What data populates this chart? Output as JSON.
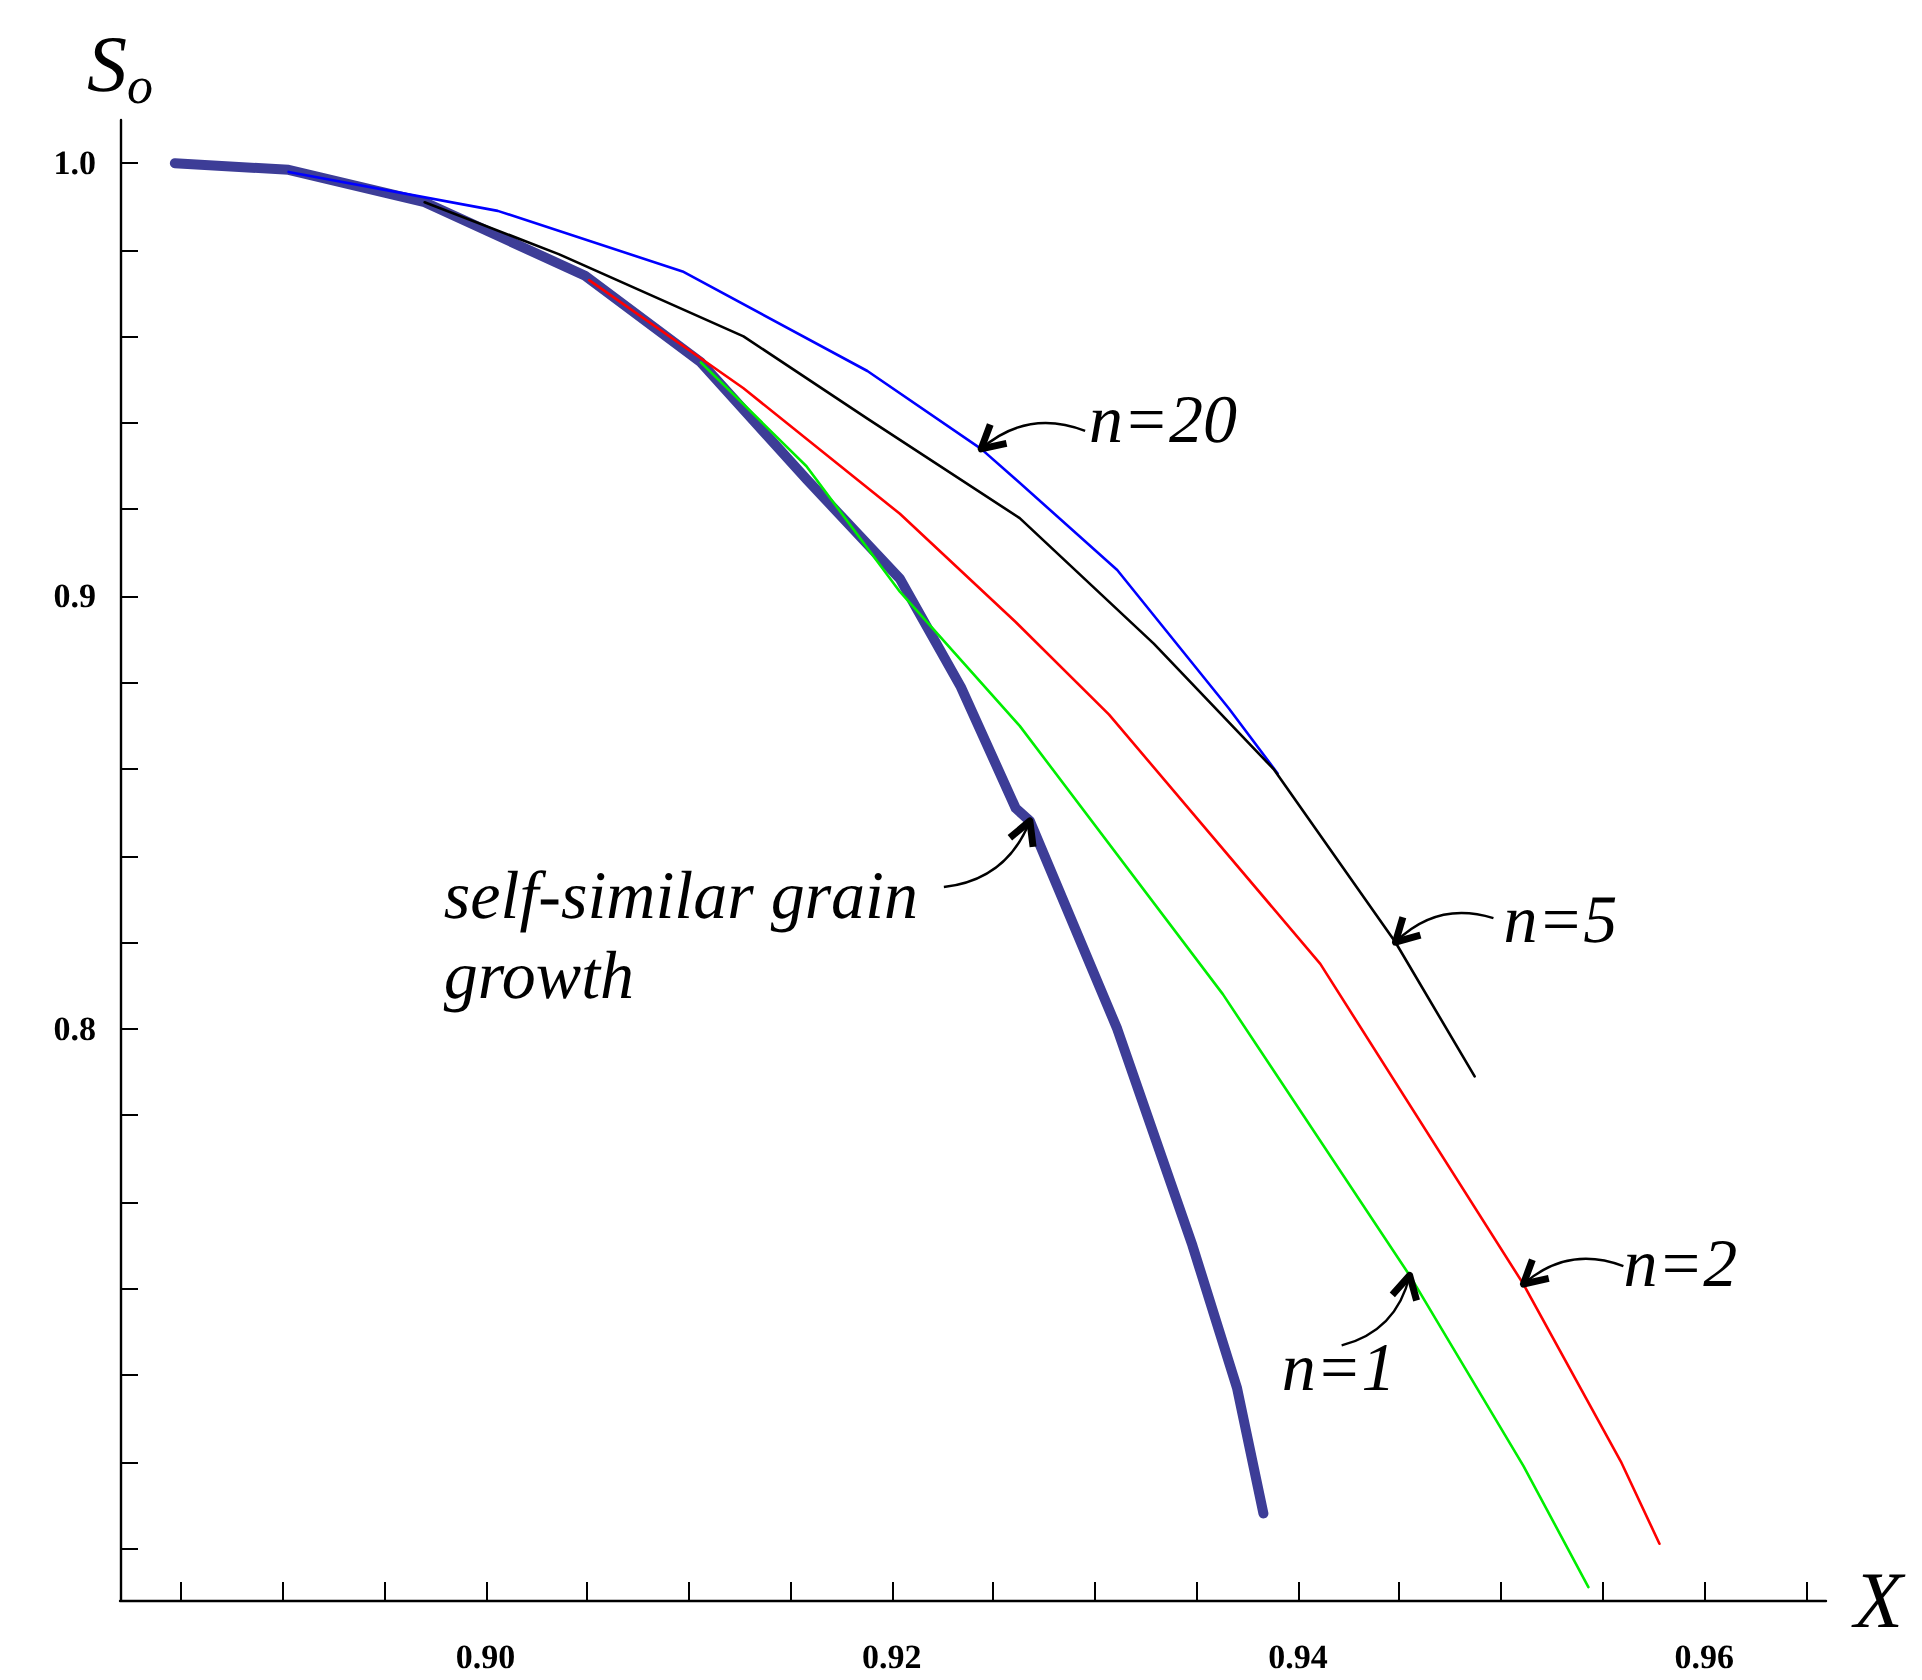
{
  "chart_data": {
    "type": "line",
    "xlabel": "X",
    "ylabel": "S$_{o}$",
    "xlim": [
      0.882,
      0.966
    ],
    "ylim": [
      0.668,
      1.01
    ],
    "xticks": [
      {
        "value": 0.885,
        "label": null
      },
      {
        "value": 0.89,
        "label": null
      },
      {
        "value": 0.895,
        "label": null
      },
      {
        "value": 0.9,
        "label": "0.90"
      },
      {
        "value": 0.905,
        "label": null
      },
      {
        "value": 0.91,
        "label": null
      },
      {
        "value": 0.915,
        "label": null
      },
      {
        "value": 0.92,
        "label": "0.92"
      },
      {
        "value": 0.925,
        "label": null
      },
      {
        "value": 0.93,
        "label": null
      },
      {
        "value": 0.935,
        "label": null
      },
      {
        "value": 0.94,
        "label": "0.94"
      },
      {
        "value": 0.945,
        "label": null
      },
      {
        "value": 0.95,
        "label": null
      },
      {
        "value": 0.955,
        "label": null
      },
      {
        "value": 0.96,
        "label": "0.96"
      },
      {
        "value": 0.965,
        "label": null
      }
    ],
    "yticks": [
      {
        "value": 0.68,
        "label": null
      },
      {
        "value": 0.7,
        "label": null
      },
      {
        "value": 0.72,
        "label": null
      },
      {
        "value": 0.74,
        "label": null
      },
      {
        "value": 0.76,
        "label": null
      },
      {
        "value": 0.78,
        "label": null
      },
      0.8,
      {
        "value": 0.82,
        "label": null
      },
      {
        "value": 0.84,
        "label": null
      },
      {
        "value": 0.86,
        "label": null
      },
      {
        "value": 0.88,
        "label": null
      },
      0.9,
      {
        "value": 0.92,
        "label": null
      },
      {
        "value": 0.94,
        "label": null
      },
      {
        "value": 0.96,
        "label": null
      },
      {
        "value": 0.98,
        "label": null
      },
      {
        "value": 1,
        "label": "1.0"
      }
    ],
    "grid": false,
    "marker": "none",
    "line_style": "solid",
    "series": [
      {
        "color": "#3d3d97",
        "x": [
          0.8847,
          0.8903,
          0.897,
          0.9049,
          0.9106,
          0.9158,
          0.9204,
          0.9234,
          0.9261,
          0.9268,
          0.9311,
          0.9348,
          0.937,
          0.9383
        ],
        "values": [
          1.0,
          0.9985,
          0.991,
          0.974,
          0.954,
          0.927,
          0.904,
          0.879,
          0.851,
          0.848,
          0.8,
          0.75,
          0.717,
          0.688
        ]
      },
      {
        "color": "#0000ff",
        "x": [
          0.8903,
          0.9006,
          0.9097,
          0.9188,
          0.9244,
          0.9261,
          0.9311,
          0.9366,
          0.939
        ],
        "values": [
          0.998,
          0.989,
          0.975,
          0.952,
          0.934,
          0.927,
          0.906,
          0.874,
          0.859
        ]
      },
      {
        "color": "#000000",
        "x": [
          0.897,
          0.9036,
          0.9127,
          0.9188,
          0.9263,
          0.9329,
          0.9388,
          0.9448,
          0.9487
        ],
        "values": [
          0.991,
          0.979,
          0.96,
          0.941,
          0.918,
          0.889,
          0.86,
          0.82,
          0.789
        ]
      },
      {
        "color": "#ff0000",
        "x": [
          0.9051,
          0.9127,
          0.9204,
          0.9261,
          0.9307,
          0.9411,
          0.9511,
          0.9559,
          0.9578
        ],
        "values": [
          0.973,
          0.948,
          0.919,
          0.894,
          0.8726,
          0.815,
          0.741,
          0.7,
          0.681
        ]
      },
      {
        "color": "#00ee00",
        "x": [
          0.9106,
          0.9158,
          0.9204,
          0.9263,
          0.9363,
          0.9455,
          0.9511,
          0.9543
        ],
        "values": [
          0.954,
          0.93,
          0.901,
          0.87,
          0.808,
          0.743,
          0.699,
          0.671
        ]
      }
    ],
    "annotations": [
      {
        "text": "n=20",
        "x": 0.9244,
        "y": 0.934
      },
      {
        "text": "n=5",
        "x": 0.9448,
        "y": 0.82
      },
      {
        "text": "n=2",
        "x": 0.9511,
        "y": 0.741
      },
      {
        "text": "n=1",
        "x": 0.9455,
        "y": 0.743
      },
      {
        "text": "self-similar grain growth",
        "x": 0.9268,
        "y": 0.848
      }
    ]
  }
}
